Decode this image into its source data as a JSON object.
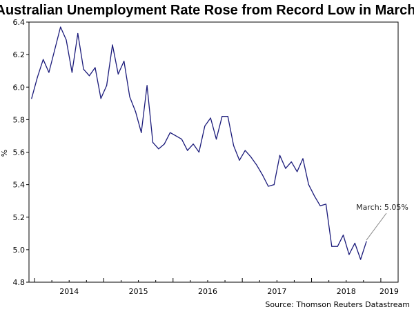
{
  "chart_data": {
    "type": "line",
    "title": "Australian Unemployment Rate Rose from Record Low in March",
    "ylabel": "%",
    "xlabel": "",
    "ylim": [
      4.8,
      6.4
    ],
    "yticks": [
      "6.4",
      "6.2",
      "6.0",
      "5.8",
      "5.6",
      "5.4",
      "5.2",
      "5.0",
      "4.8"
    ],
    "ytick_values": [
      6.4,
      6.2,
      6.0,
      5.8,
      5.6,
      5.4,
      5.2,
      5.0,
      4.8
    ],
    "xlim": [
      2013.92,
      2019.25
    ],
    "x_year_labels": [
      {
        "label": "2014",
        "year": 2014
      },
      {
        "label": "2015",
        "year": 2015
      },
      {
        "label": "2016",
        "year": 2016
      },
      {
        "label": "2017",
        "year": 2017
      },
      {
        "label": "2018",
        "year": 2018
      },
      {
        "label": "2019",
        "year": 2019
      }
    ],
    "series": [
      {
        "name": "Unemployment rate",
        "color": "#1a1a7a",
        "start": "2013-12",
        "values": [
          5.93,
          6.06,
          6.17,
          6.09,
          6.23,
          6.37,
          6.29,
          6.09,
          6.33,
          6.11,
          6.07,
          6.12,
          5.93,
          6.01,
          6.26,
          6.08,
          6.16,
          5.94,
          5.85,
          5.72,
          6.01,
          5.66,
          5.62,
          5.65,
          5.72,
          5.7,
          5.68,
          5.61,
          5.65,
          5.6,
          5.76,
          5.81,
          5.68,
          5.82,
          5.82,
          5.64,
          5.55,
          5.61,
          5.57,
          5.52,
          5.46,
          5.39,
          5.4,
          5.58,
          5.5,
          5.54,
          5.48,
          5.56,
          5.4,
          5.33,
          5.27,
          5.28,
          5.02,
          5.02,
          5.09,
          4.97,
          5.04,
          4.94,
          5.05
        ]
      }
    ],
    "annotation": {
      "text": "March: 5.05%",
      "color": "#888888"
    },
    "source": "Source: Thomson Reuters Datastream"
  }
}
